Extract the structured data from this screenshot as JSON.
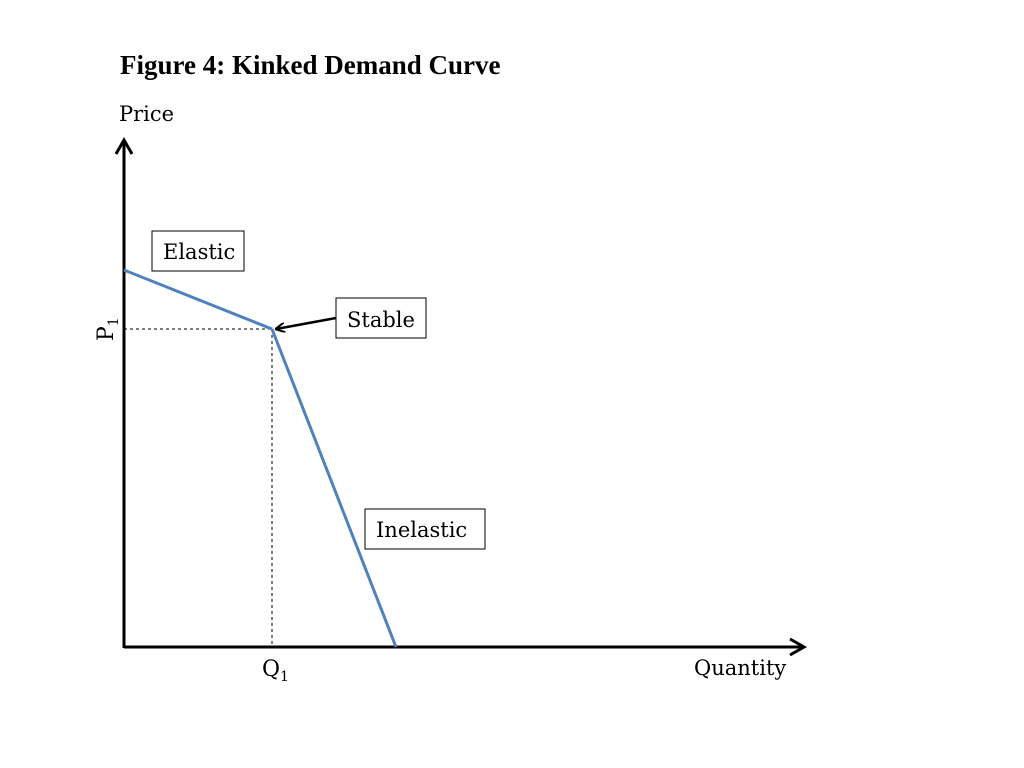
{
  "title": "Figure 4: Kinked Demand Curve",
  "axes": {
    "y_label": "Price",
    "x_label": "Quantity",
    "y_marker": {
      "main": "P",
      "sub": "1"
    },
    "x_marker": {
      "main": "Q",
      "sub": "1"
    }
  },
  "annotations": {
    "elastic": "Elastic",
    "stable": "Stable",
    "inelastic": "Inelastic"
  },
  "colors": {
    "demand_curve": "#4f81bd",
    "axes": "#000000",
    "guides": "#000000"
  }
}
